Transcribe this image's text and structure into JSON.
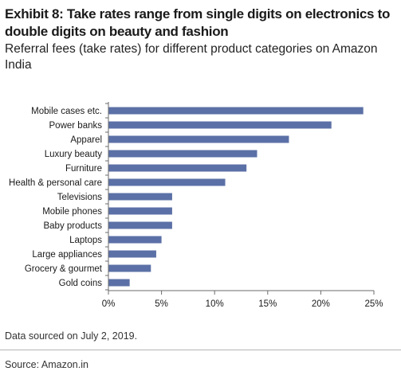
{
  "header": {
    "title": "Exhibit 8: Take rates range from single digits on electronics to double digits on beauty and fashion",
    "subtitle": "Referral fees (take rates) for different product categories on Amazon India"
  },
  "footer": {
    "note": "Data sourced on July 2, 2019.",
    "source": "Source: Amazon.in"
  },
  "colors": {
    "bar": "#5b70a6",
    "axis": "#6b6b6b"
  },
  "chart_data": {
    "type": "bar",
    "orientation": "horizontal",
    "categories": [
      "Mobile cases etc.",
      "Power banks",
      "Apparel",
      "Luxury beauty",
      "Furniture",
      "Health & personal care",
      "Televisions",
      "Mobile phones",
      "Baby products",
      "Laptops",
      "Large appliances",
      "Grocery & gourmet",
      "Gold coins"
    ],
    "values": [
      24,
      21,
      17,
      14,
      13,
      11,
      6,
      6,
      6,
      5,
      4.5,
      4,
      2
    ],
    "xlim": [
      0,
      25
    ],
    "xticks": [
      "0%",
      "5%",
      "10%",
      "15%",
      "20%",
      "25%"
    ],
    "grid": false,
    "legend": "none"
  }
}
